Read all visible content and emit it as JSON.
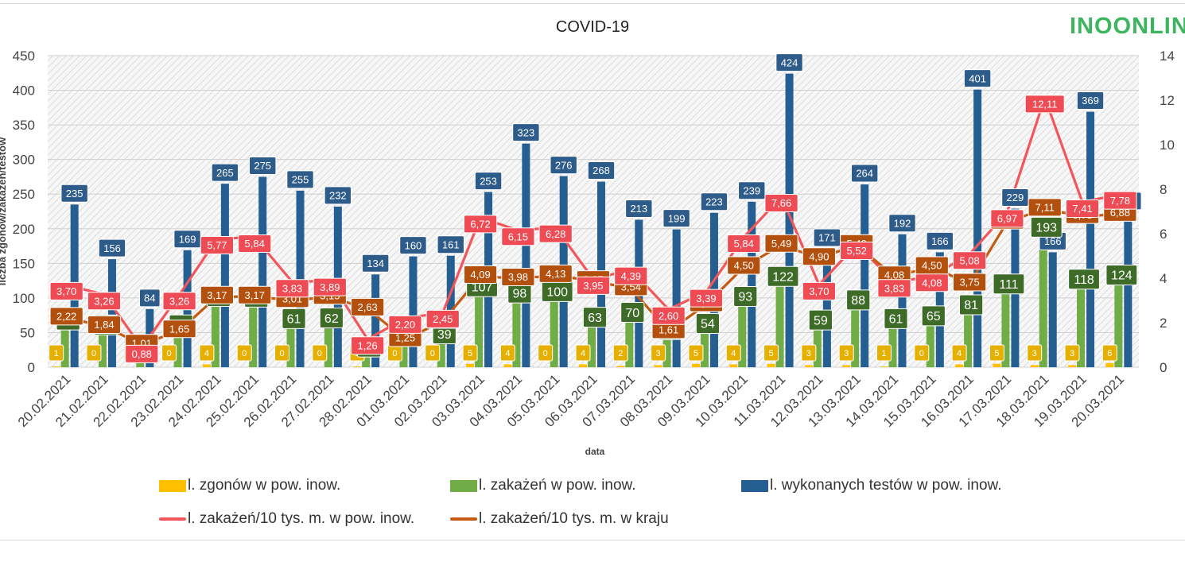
{
  "logo": {
    "text": "INOONLIN"
  },
  "chart_data": {
    "type": "bar",
    "title": "COVID-19",
    "xlabel": "data",
    "ylabel": "liczba zgonów/zakażeń/testów",
    "ylim": [
      0,
      450
    ],
    "yticks": [
      "0",
      "50",
      "100",
      "150",
      "200",
      "250",
      "300",
      "350",
      "400",
      "450"
    ],
    "y2lim": [
      0,
      14
    ],
    "y2ticks": [
      "0",
      "2",
      "4",
      "6",
      "8",
      "10",
      "12",
      "14"
    ],
    "grid": true,
    "legend_position": "bottom",
    "categories": [
      "20.02.2021",
      "21.02.2021",
      "22.02.2021",
      "23.02.2021",
      "24.02.2021",
      "25.02.2021",
      "26.02.2021",
      "27.02.2021",
      "28.02.2021",
      "01.03.2021",
      "02.03.2021",
      "03.03.2021",
      "04.03.2021",
      "05.03.2021",
      "06.03.2021",
      "07.03.2021",
      "08.03.2021",
      "09.03.2021",
      "10.03.2021",
      "11.03.2021",
      "12.03.2021",
      "13.03.2021",
      "14.03.2021",
      "15.03.2021",
      "16.03.2021",
      "17.03.2021",
      "18.03.2021",
      "19.03.2021",
      "20.03.2021"
    ],
    "series": [
      {
        "name": "l. zgonów w pow. inow.",
        "kind": "bar",
        "axis": "left",
        "color": "#FFC000",
        "values": [
          1,
          0,
          0,
          0,
          4,
          0,
          0,
          0,
          1,
          0,
          0,
          5,
          4,
          0,
          4,
          2,
          3,
          5,
          4,
          5,
          3,
          3,
          1,
          0,
          4,
          5,
          3,
          3,
          6
        ],
        "labels": [
          "1",
          "0",
          "0",
          "0",
          "4",
          "0",
          "0",
          "0",
          "1",
          "0",
          "0",
          "5",
          "4",
          "0",
          "4",
          "2",
          "3",
          "5",
          "4",
          "5",
          "3",
          "3",
          "1",
          "0",
          "4",
          "5",
          "3",
          "3",
          "6"
        ]
      },
      {
        "name": "l. zakażeń w pow. inow.",
        "kind": "bar",
        "axis": "left",
        "color": "#70AD47",
        "values": [
          59,
          52,
          14,
          52,
          93,
          92,
          61,
          62,
          20,
          35,
          39,
          107,
          98,
          100,
          63,
          70,
          45,
          54,
          93,
          122,
          59,
          88,
          61,
          65,
          81,
          111,
          193,
          118,
          124
        ],
        "labels": [
          "59",
          "52",
          "14",
          "52",
          "93",
          "92",
          "61",
          "62",
          "20",
          "35",
          "39",
          "107",
          "98",
          "100",
          "63",
          "70",
          "45",
          "54",
          "93",
          "122",
          "59",
          "88",
          "61",
          "65",
          "81",
          "111",
          "193",
          "118",
          "124"
        ]
      },
      {
        "name": "l. wykonanych testów w pow. inow.",
        "kind": "bar",
        "axis": "left",
        "color": "#255E91",
        "values": [
          235,
          156,
          84,
          169,
          265,
          275,
          255,
          232,
          134,
          160,
          161,
          253,
          323,
          276,
          268,
          213,
          199,
          223,
          239,
          424,
          171,
          264,
          192,
          166,
          401,
          229,
          166,
          369,
          224
        ],
        "labels": [
          "235",
          "156",
          "84",
          "169",
          "265",
          "275",
          "255",
          "232",
          "134",
          "160",
          "161",
          "253",
          "323",
          "276",
          "268",
          "213",
          "199",
          "223",
          "239",
          "424",
          "171",
          "264",
          "192",
          "166",
          "401",
          "229",
          "166",
          "369",
          "224"
        ]
      },
      {
        "name": "l. zakażeń/10 tys. m. w pow. inow.",
        "kind": "line",
        "axis": "right",
        "color": "#F4555A",
        "values": [
          3.7,
          3.26,
          0.88,
          3.26,
          5.77,
          5.84,
          3.83,
          3.89,
          1.26,
          2.2,
          2.45,
          6.72,
          6.15,
          6.28,
          3.95,
          4.39,
          2.6,
          3.39,
          5.84,
          7.66,
          3.7,
          5.52,
          3.83,
          4.08,
          5.08,
          6.97,
          12.11,
          7.41,
          7.78
        ],
        "labels": [
          "3,70",
          "3,26",
          "0,88",
          "3,26",
          "5,77",
          "5,84",
          "3,83",
          "3,89",
          "1,26",
          "2,20",
          "2,45",
          "6,72",
          "6,15",
          "6,28",
          "3,95",
          "4,39",
          "2,60",
          "3,39",
          "5,84",
          "7,66",
          "3,70",
          "5,52",
          "3,83",
          "4,08",
          "5,08",
          "6,97",
          "12,11",
          "7,41",
          "7,78"
        ]
      },
      {
        "name": "l. zakażeń/10 tys. m. w kraju",
        "kind": "line",
        "axis": "right",
        "color": "#C55A11",
        "values": [
          2.22,
          1.84,
          1.01,
          1.65,
          3.17,
          3.17,
          3.01,
          3.15,
          2.63,
          1.25,
          2.07,
          4.09,
          3.98,
          4.13,
          3.87,
          3.54,
          1.61,
          2.82,
          4.5,
          5.49,
          4.9,
          5.49,
          4.08,
          4.5,
          3.75,
          6.53,
          7.11,
          6.78,
          6.88
        ],
        "labels": [
          "2,22",
          "1,84",
          "1,01",
          "1,65",
          "3,17",
          "3,17",
          "3,01",
          "3,15",
          "2,63",
          "1,25",
          "2,07",
          "4,09",
          "3,98",
          "4,13",
          "3,87",
          "3,54",
          "1,61",
          "2,82",
          "4,50",
          "5,49",
          "4,90",
          "5,49",
          "4,08",
          "4,50",
          "3,75",
          "6,53",
          "7,11",
          "6,78",
          "6,88"
        ]
      }
    ]
  }
}
